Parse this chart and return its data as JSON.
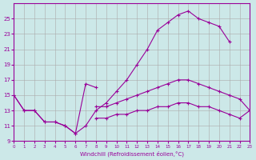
{
  "background_color": "#cce8e8",
  "grid_color": "#aaaaaa",
  "line_color": "#990099",
  "xlabel": "Windchill (Refroidissement éolien,°C)",
  "xlim": [
    0,
    23
  ],
  "ylim": [
    9,
    27
  ],
  "yticks": [
    9,
    11,
    13,
    15,
    17,
    19,
    21,
    23,
    25
  ],
  "xticks": [
    0,
    1,
    2,
    3,
    4,
    5,
    6,
    7,
    8,
    9,
    10,
    11,
    12,
    13,
    14,
    15,
    16,
    17,
    18,
    19,
    20,
    21,
    22,
    23
  ],
  "series": [
    {
      "x": [
        0,
        1,
        2,
        3,
        4,
        5,
        6,
        7,
        8,
        9,
        10,
        11,
        12,
        13,
        14,
        15,
        16,
        17,
        18,
        19,
        20,
        21,
        22,
        23
      ],
      "y": [
        15.0,
        13.0,
        13.0,
        11.5,
        11.5,
        11.0,
        10.0,
        11.0,
        13.0,
        14.0,
        15.5,
        17.0,
        19.0,
        21.0,
        23.5,
        24.5,
        25.5,
        26.0,
        25.0,
        24.5,
        24.0,
        22.0,
        null,
        null
      ]
    },
    {
      "x": [
        8,
        9,
        10,
        11,
        12,
        13,
        14,
        15,
        16,
        17,
        18,
        19,
        20,
        21,
        22,
        23
      ],
      "y": [
        13.5,
        13.5,
        14.0,
        14.5,
        15.0,
        15.5,
        16.0,
        16.5,
        17.0,
        17.0,
        16.5,
        16.0,
        15.5,
        15.0,
        14.5,
        13.0
      ]
    },
    {
      "x": [
        8,
        9,
        10,
        11,
        12,
        13,
        14,
        15,
        16,
        17,
        18,
        19,
        20,
        21,
        22,
        23
      ],
      "y": [
        12.0,
        12.0,
        12.5,
        12.5,
        13.0,
        13.0,
        13.5,
        13.5,
        14.0,
        14.0,
        13.5,
        13.5,
        13.0,
        12.5,
        12.0,
        13.0
      ]
    },
    {
      "x": [
        0,
        1,
        2,
        3,
        4,
        5,
        6,
        7,
        8
      ],
      "y": [
        15.0,
        13.0,
        13.0,
        11.5,
        11.5,
        11.0,
        10.0,
        16.5,
        16.0
      ]
    }
  ]
}
